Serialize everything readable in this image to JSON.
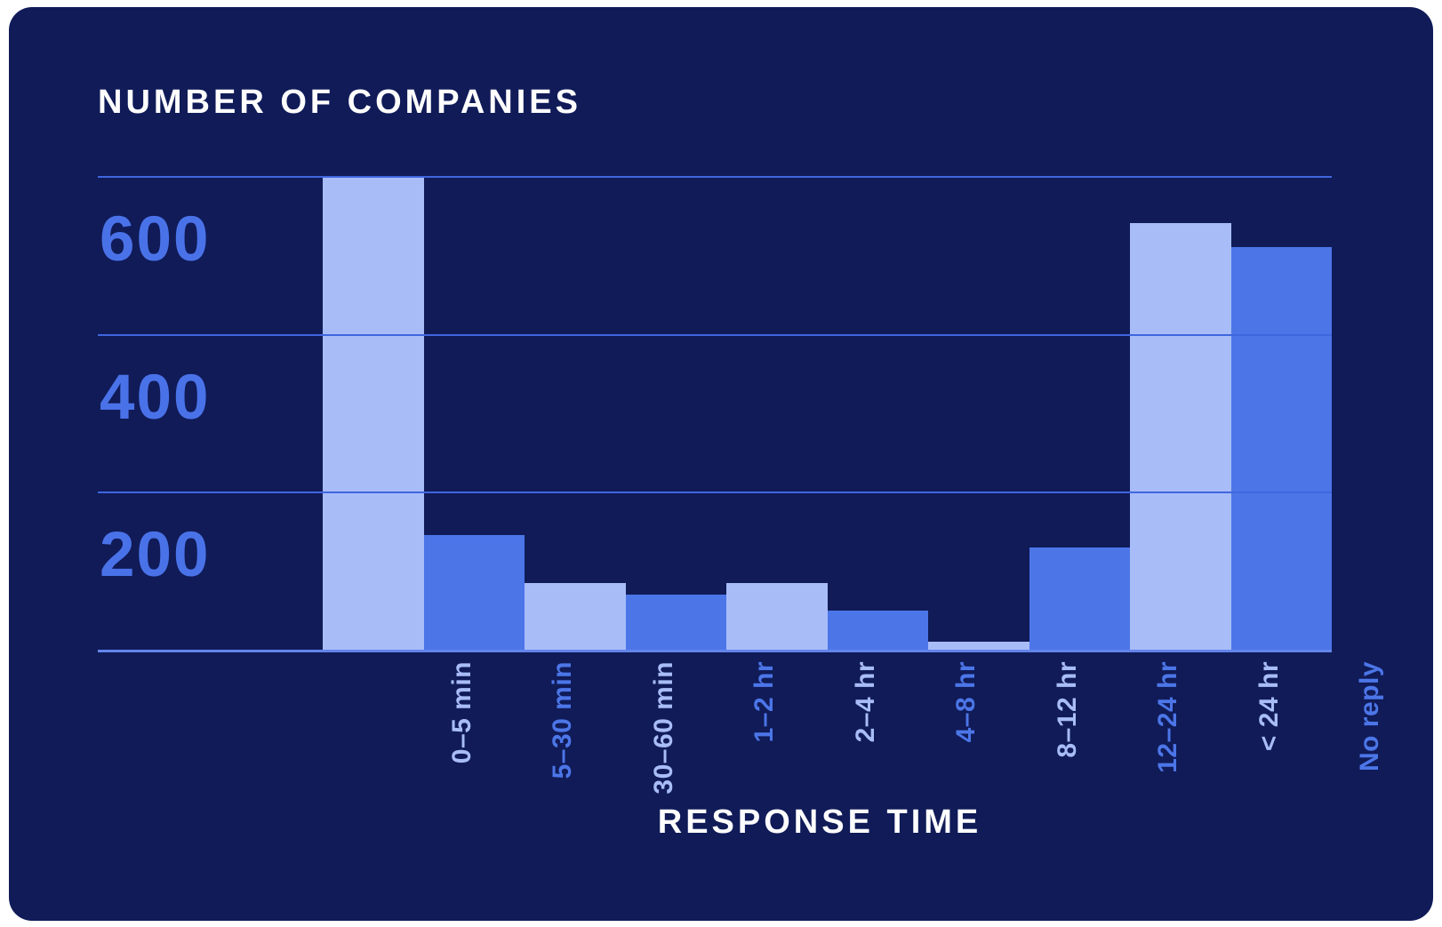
{
  "chart": {
    "y_axis_title": "NUMBER OF COMPANIES",
    "x_axis_title": "RESPONSE TIME"
  },
  "chart_data": {
    "type": "bar",
    "title": "",
    "xlabel": "RESPONSE TIME",
    "ylabel": "NUMBER OF COMPANIES",
    "categories": [
      "0–5 min",
      "5–30 min",
      "30–60 min",
      "1–2 hr",
      "2–4 hr",
      "4–8 hr",
      "8–12 hr",
      "12–24 hr",
      "< 24 hr",
      "No reply"
    ],
    "values": [
      600,
      145,
      85,
      70,
      85,
      50,
      10,
      130,
      540,
      510
    ],
    "ylim": [
      0,
      600
    ],
    "yticks": [
      600,
      400,
      200
    ],
    "grid": "horizontal gridlines at 600/400/200 drawn over bars, baseline at 0",
    "legend_position": "none",
    "bar_colors_alternate": [
      "#a8bcf8",
      "#4c76e8"
    ],
    "label_colors_match_bars": true
  },
  "colors": {
    "page_background": "#ffffff",
    "card_background": "#101b58",
    "bar_light": "#a8bcf8",
    "bar_medium": "#4c76e8",
    "gridline": "#4066de",
    "baseline": "#6484ea",
    "y_tick_label": "#4a72e8",
    "title_text": "#fdfdfe"
  }
}
